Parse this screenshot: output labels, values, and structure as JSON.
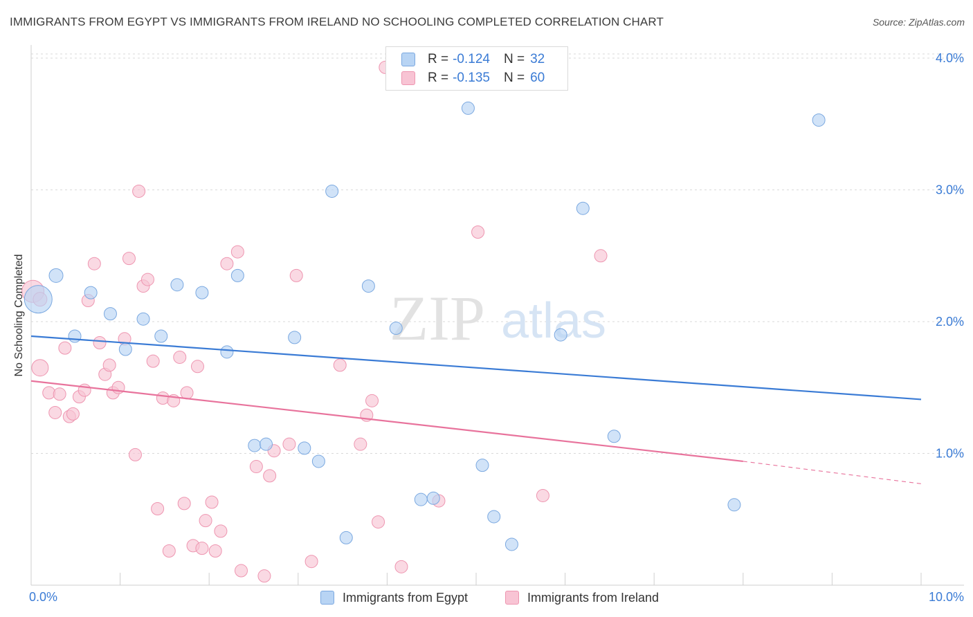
{
  "title": "IMMIGRANTS FROM EGYPT VS IMMIGRANTS FROM IRELAND NO SCHOOLING COMPLETED CORRELATION CHART",
  "source": "Source: ZipAtlas.com",
  "watermark": {
    "zip": "ZIP",
    "atlas": "atlas"
  },
  "legend": {
    "rows": [
      {
        "r_label": "R =",
        "r_value": "-0.124",
        "n_label": "N =",
        "n_value": "32"
      },
      {
        "r_label": "R =",
        "r_value": "-0.135",
        "n_label": "N =",
        "n_value": "60"
      }
    ]
  },
  "bottom_legend": [
    "Immigrants from Egypt",
    "Immigrants from Ireland"
  ],
  "colors": {
    "egypt_fill": "#b8d4f4",
    "egypt_stroke": "#7aa8e0",
    "egypt_line": "#3a7bd5",
    "ireland_fill": "#f8c4d4",
    "ireland_stroke": "#ee95b0",
    "ireland_line": "#e8739c",
    "value_text": "#3a7bd5",
    "grid": "#d9d9d9"
  },
  "chart_data": {
    "type": "scatter",
    "title": "IMMIGRANTS FROM EGYPT VS IMMIGRANTS FROM IRELAND NO SCHOOLING COMPLETED CORRELATION CHART",
    "xlabel": "",
    "ylabel": "No Schooling Completed",
    "xlim": [
      0,
      10
    ],
    "ylim": [
      0,
      4.1
    ],
    "x_tick_labels": [
      "0.0%",
      "10.0%"
    ],
    "y_ticks": [
      1,
      2,
      3,
      4
    ],
    "y_tick_labels": [
      "1.0%",
      "2.0%",
      "3.0%",
      "4.0%"
    ],
    "grid": true,
    "series": [
      {
        "name": "Immigrants from Egypt",
        "r": -0.124,
        "n": 32,
        "points": [
          [
            0.08,
            2.17,
            20
          ],
          [
            0.28,
            2.35,
            10
          ],
          [
            0.49,
            1.89,
            9
          ],
          [
            0.67,
            2.22,
            9
          ],
          [
            0.89,
            2.06,
            9
          ],
          [
            1.06,
            1.79,
            9
          ],
          [
            1.26,
            2.02,
            9
          ],
          [
            1.46,
            1.89,
            9
          ],
          [
            1.64,
            2.28,
            9
          ],
          [
            1.92,
            2.22,
            9
          ],
          [
            2.2,
            1.77,
            9
          ],
          [
            2.32,
            2.35,
            9
          ],
          [
            2.51,
            1.06,
            9
          ],
          [
            2.64,
            1.07,
            9
          ],
          [
            2.96,
            1.88,
            9
          ],
          [
            3.07,
            1.04,
            9
          ],
          [
            3.23,
            0.94,
            9
          ],
          [
            3.38,
            2.99,
            9
          ],
          [
            3.54,
            0.36,
            9
          ],
          [
            3.79,
            2.27,
            9
          ],
          [
            4.1,
            1.95,
            9
          ],
          [
            4.38,
            0.65,
            9
          ],
          [
            4.52,
            0.66,
            9
          ],
          [
            4.91,
            3.62,
            9
          ],
          [
            5.07,
            0.91,
            9
          ],
          [
            5.2,
            0.52,
            9
          ],
          [
            5.4,
            0.31,
            9
          ],
          [
            5.95,
            1.9,
            9
          ],
          [
            6.2,
            2.86,
            9
          ],
          [
            6.55,
            1.13,
            9
          ],
          [
            7.9,
            0.61,
            9
          ],
          [
            8.85,
            3.53,
            9
          ]
        ],
        "trend": {
          "x": [
            0,
            10
          ],
          "y": [
            1.89,
            1.41
          ]
        }
      },
      {
        "name": "Immigrants from Ireland",
        "r": -0.135,
        "n": 60,
        "points": [
          [
            0.02,
            2.23,
            16
          ],
          [
            0.1,
            2.17,
            10
          ],
          [
            0.1,
            1.65,
            12
          ],
          [
            0.2,
            1.46,
            9
          ],
          [
            0.27,
            1.31,
            9
          ],
          [
            0.32,
            1.45,
            9
          ],
          [
            0.38,
            1.8,
            9
          ],
          [
            0.43,
            1.28,
            9
          ],
          [
            0.47,
            1.3,
            9
          ],
          [
            0.54,
            1.43,
            9
          ],
          [
            0.6,
            1.48,
            9
          ],
          [
            0.64,
            2.16,
            9
          ],
          [
            0.71,
            2.44,
            9
          ],
          [
            0.77,
            1.84,
            9
          ],
          [
            0.83,
            1.6,
            9
          ],
          [
            0.88,
            1.67,
            9
          ],
          [
            0.92,
            1.46,
            9
          ],
          [
            0.98,
            1.5,
            9
          ],
          [
            1.05,
            1.87,
            9
          ],
          [
            1.1,
            2.48,
            9
          ],
          [
            1.17,
            0.99,
            9
          ],
          [
            1.21,
            2.99,
            9
          ],
          [
            1.26,
            2.27,
            9
          ],
          [
            1.31,
            2.32,
            9
          ],
          [
            1.37,
            1.7,
            9
          ],
          [
            1.42,
            0.58,
            9
          ],
          [
            1.48,
            1.42,
            9
          ],
          [
            1.55,
            0.26,
            9
          ],
          [
            1.6,
            1.4,
            9
          ],
          [
            1.67,
            1.73,
            9
          ],
          [
            1.72,
            0.62,
            9
          ],
          [
            1.75,
            1.46,
            9
          ],
          [
            1.82,
            0.3,
            9
          ],
          [
            1.87,
            1.66,
            9
          ],
          [
            1.92,
            0.28,
            9
          ],
          [
            1.96,
            0.49,
            9
          ],
          [
            2.03,
            0.63,
            9
          ],
          [
            2.07,
            0.26,
            9
          ],
          [
            2.13,
            0.41,
            9
          ],
          [
            2.2,
            2.44,
            9
          ],
          [
            2.32,
            2.53,
            9
          ],
          [
            2.36,
            0.11,
            9
          ],
          [
            2.53,
            0.9,
            9
          ],
          [
            2.62,
            0.07,
            9
          ],
          [
            2.68,
            0.83,
            9
          ],
          [
            2.73,
            1.02,
            9
          ],
          [
            2.9,
            1.07,
            9
          ],
          [
            2.98,
            2.35,
            9
          ],
          [
            3.15,
            0.18,
            9
          ],
          [
            3.47,
            1.67,
            9
          ],
          [
            3.7,
            1.07,
            9
          ],
          [
            3.77,
            1.29,
            9
          ],
          [
            3.83,
            1.4,
            9
          ],
          [
            3.9,
            0.48,
            9
          ],
          [
            3.98,
            3.93,
            9
          ],
          [
            4.16,
            0.14,
            9
          ],
          [
            4.58,
            0.64,
            9
          ],
          [
            5.02,
            2.68,
            9
          ],
          [
            5.75,
            0.68,
            9
          ],
          [
            6.4,
            2.5,
            9
          ]
        ],
        "trend": {
          "x": [
            0,
            8
          ],
          "y": [
            1.55,
            0.94
          ]
        },
        "trend_extension": {
          "x": [
            8,
            10
          ],
          "y": [
            0.94,
            0.77
          ]
        }
      }
    ]
  }
}
